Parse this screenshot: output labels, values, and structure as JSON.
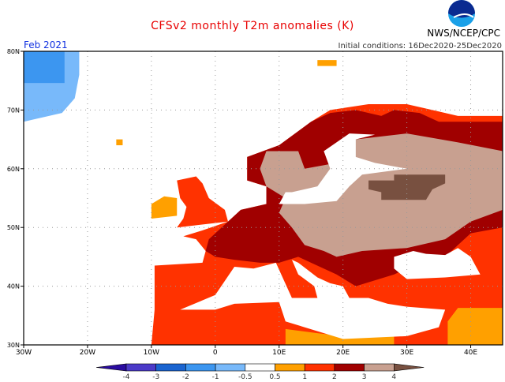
{
  "header": {
    "title": "CFSv2 monthly T2m anomalies (K)",
    "center": "NWS/NCEP/CPC",
    "month": "Feb 2021",
    "initial_conditions": "Initial conditions: 16Dec2020-25Dec2020",
    "logo_text": "NOAA"
  },
  "axes": {
    "lat_labels": [
      "80N",
      "70N",
      "60N",
      "50N",
      "40N",
      "30N"
    ],
    "lat_values": [
      80,
      70,
      60,
      50,
      40,
      30
    ],
    "lon_labels": [
      "30W",
      "20W",
      "10W",
      "0",
      "10E",
      "20E",
      "30E",
      "40E"
    ],
    "lon_values": [
      -30,
      -20,
      -10,
      0,
      10,
      20,
      30,
      40
    ],
    "lon_range": [
      -30,
      45
    ],
    "lat_range": [
      30,
      80
    ]
  },
  "colorbar": {
    "labels": [
      "-4",
      "-3",
      "-2",
      "-1",
      "-0.5",
      "0.5",
      "1",
      "2",
      "3",
      "4"
    ],
    "colors": [
      "#2a0ca0",
      "#4b3ac8",
      "#1a64d0",
      "#3c96f0",
      "#78b9fa",
      "#ffffff",
      "#ffa000",
      "#ff3200",
      "#a00000",
      "#c8a090",
      "#785040"
    ]
  },
  "anomaly_field": [
    {
      "cat": "1-2",
      "color": "#ff3200",
      "poly": [
        [
          -10,
          30
        ],
        [
          -9.5,
          36
        ],
        [
          -9.5,
          43.5
        ],
        [
          -2,
          44
        ],
        [
          -1.5,
          46
        ],
        [
          -3,
          48
        ],
        [
          -5,
          48.5
        ],
        [
          -2,
          49.5
        ],
        [
          2,
          51
        ],
        [
          4,
          53
        ],
        [
          8,
          54
        ],
        [
          8,
          57
        ],
        [
          5,
          58
        ],
        [
          5,
          62
        ],
        [
          10,
          64
        ],
        [
          15,
          68
        ],
        [
          18,
          70
        ],
        [
          24,
          71
        ],
        [
          30,
          71
        ],
        [
          34,
          70
        ],
        [
          38,
          69
        ],
        [
          45,
          69
        ],
        [
          45,
          30
        ]
      ]
    },
    {
      "cat": "1-2",
      "color": "#ff3200",
      "poly": [
        [
          -6,
          50
        ],
        [
          2,
          51
        ],
        [
          1.5,
          53
        ],
        [
          -1,
          55
        ],
        [
          -2,
          57.5
        ],
        [
          -3,
          58.7
        ],
        [
          -6,
          58
        ],
        [
          -5.5,
          55
        ],
        [
          -4.5,
          53.5
        ],
        [
          -5,
          51.5
        ]
      ]
    },
    {
      "cat": "0.5-1",
      "color": "#ffa000",
      "poly": [
        [
          -10,
          51.5
        ],
        [
          -6,
          52
        ],
        [
          -6,
          55
        ],
        [
          -8,
          55.3
        ],
        [
          -10,
          54
        ]
      ]
    },
    {
      "cat": "2-3",
      "color": "#a00000",
      "poly": [
        [
          5,
          58
        ],
        [
          5,
          62
        ],
        [
          10,
          64
        ],
        [
          15,
          68
        ],
        [
          18,
          69.5
        ],
        [
          22,
          70
        ],
        [
          26,
          69
        ],
        [
          28,
          70
        ],
        [
          32,
          69.5
        ],
        [
          35,
          68
        ],
        [
          45,
          68
        ],
        [
          45,
          50
        ],
        [
          40,
          49
        ],
        [
          38,
          47
        ],
        [
          36,
          45
        ],
        [
          30,
          43
        ],
        [
          28,
          42
        ],
        [
          22,
          40
        ],
        [
          19,
          42
        ],
        [
          15,
          44
        ],
        [
          13,
          45
        ],
        [
          10,
          44
        ],
        [
          7,
          44
        ],
        [
          3,
          44.5
        ],
        [
          0,
          45
        ],
        [
          -1.5,
          46
        ],
        [
          -1,
          48
        ],
        [
          2,
          51
        ],
        [
          4,
          53
        ],
        [
          8,
          54
        ],
        [
          8,
          57
        ]
      ]
    },
    {
      "cat": "3-4",
      "color": "#c8a090",
      "poly": [
        [
          8,
          63
        ],
        [
          13,
          63
        ],
        [
          14,
          60
        ],
        [
          19,
          61
        ],
        [
          22,
          65
        ],
        [
          30,
          66
        ],
        [
          38,
          64.5
        ],
        [
          45,
          63
        ],
        [
          45,
          53
        ],
        [
          40,
          51
        ],
        [
          36,
          48
        ],
        [
          30,
          46.5
        ],
        [
          23,
          46
        ],
        [
          19,
          45
        ],
        [
          17,
          46
        ],
        [
          14,
          47
        ],
        [
          12,
          50
        ],
        [
          10,
          52.5
        ],
        [
          11,
          55
        ],
        [
          8,
          57
        ],
        [
          7,
          60
        ]
      ]
    },
    {
      "cat": ">4",
      "color": "#785040",
      "poly": [
        [
          24,
          58
        ],
        [
          28,
          58
        ],
        [
          28,
          59
        ],
        [
          36,
          59
        ],
        [
          36,
          57.5
        ],
        [
          34,
          56.5
        ],
        [
          33,
          54.7
        ],
        [
          26,
          54.7
        ],
        [
          26,
          56
        ],
        [
          24,
          56.5
        ]
      ]
    },
    {
      "cat": "0.5-1",
      "color": "#ffa000",
      "poly": [
        [
          11,
          30
        ],
        [
          11,
          32.7
        ],
        [
          16,
          32
        ],
        [
          20,
          31.5
        ],
        [
          24,
          32.3
        ],
        [
          28,
          32.5
        ],
        [
          28,
          30
        ]
      ]
    },
    {
      "cat": "0.5-1",
      "color": "#ffa000",
      "poly": [
        [
          36.4,
          30
        ],
        [
          36.4,
          34
        ],
        [
          38,
          36.3
        ],
        [
          45,
          36.3
        ],
        [
          45,
          30
        ]
      ]
    },
    {
      "cat": "-0.5-0.5",
      "color": "#ffffff",
      "poly": [
        [
          10,
          54
        ],
        [
          14,
          54
        ],
        [
          19,
          54.5
        ],
        [
          21,
          57
        ],
        [
          23,
          59
        ],
        [
          30,
          60
        ],
        [
          25,
          61
        ],
        [
          22,
          62
        ],
        [
          22,
          65
        ],
        [
          25,
          65.8
        ],
        [
          21,
          66
        ],
        [
          17,
          63
        ],
        [
          18,
          60
        ],
        [
          16,
          57
        ],
        [
          12,
          56
        ],
        [
          11,
          56
        ]
      ]
    },
    {
      "cat": "-0.5-0.5",
      "color": "#ffffff",
      "poly": [
        [
          -5.5,
          36
        ],
        [
          0,
          36
        ],
        [
          3,
          37
        ],
        [
          10,
          37.3
        ],
        [
          11,
          34
        ],
        [
          20,
          31
        ],
        [
          30,
          31.5
        ],
        [
          35,
          33
        ],
        [
          36,
          36
        ],
        [
          30,
          36.5
        ],
        [
          27,
          37
        ],
        [
          24,
          38
        ],
        [
          21,
          38
        ],
        [
          20,
          40
        ],
        [
          18,
          40.5
        ],
        [
          16,
          41.5
        ],
        [
          13,
          44
        ],
        [
          12,
          44.5
        ],
        [
          13,
          42
        ],
        [
          15.5,
          40
        ],
        [
          16,
          38
        ],
        [
          12,
          38
        ],
        [
          9.5,
          44
        ],
        [
          6,
          43
        ],
        [
          3,
          43.3
        ],
        [
          0,
          38.5
        ]
      ]
    },
    {
      "cat": "-0.5-0.5",
      "color": "#ffffff",
      "poly": [
        [
          28,
          43
        ],
        [
          28,
          45
        ],
        [
          31,
          46
        ],
        [
          33,
          45.5
        ],
        [
          36,
          45.3
        ],
        [
          38,
          46.5
        ],
        [
          40,
          45
        ],
        [
          41.5,
          42
        ],
        [
          36,
          41.5
        ],
        [
          30,
          41.2
        ]
      ]
    },
    {
      "cat": "-1--0.5",
      "color": "#78b9fa",
      "poly": [
        [
          -30,
          80
        ],
        [
          -21.3,
          80
        ],
        [
          -21.3,
          76
        ],
        [
          -22,
          72
        ],
        [
          -24,
          69.5
        ],
        [
          -28,
          68.5
        ],
        [
          -30,
          68
        ]
      ]
    },
    {
      "cat": "-2--1",
      "color": "#3c96f0",
      "poly": [
        [
          -30,
          80
        ],
        [
          -23.6,
          80
        ],
        [
          -23.6,
          74.6
        ],
        [
          -30,
          74.6
        ]
      ]
    },
    {
      "cat": "0.5-1",
      "color": "#ffa000",
      "poly": [
        [
          -15.5,
          64
        ],
        [
          -14.5,
          64
        ],
        [
          -14.5,
          65
        ],
        [
          -15.5,
          65
        ]
      ]
    },
    {
      "cat": "0.5-1",
      "color": "#ffa000",
      "poly": [
        [
          16,
          77.5
        ],
        [
          19,
          77.5
        ],
        [
          19,
          78.5
        ],
        [
          16,
          78.5
        ]
      ]
    }
  ]
}
